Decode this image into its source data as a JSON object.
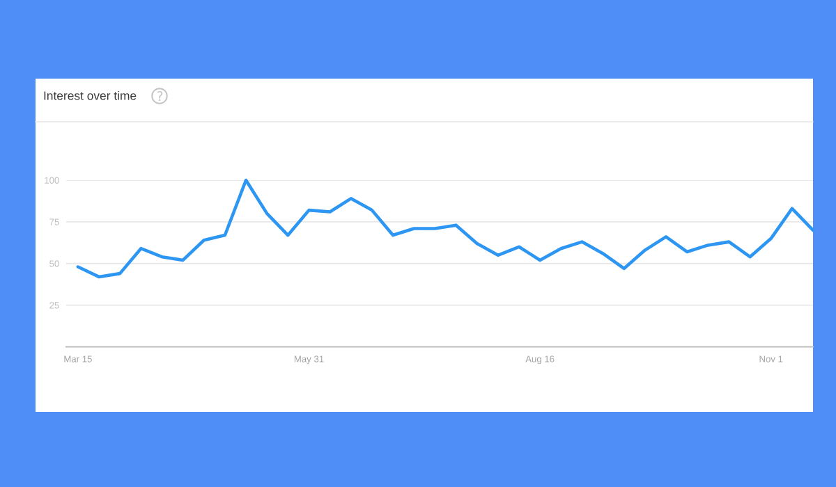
{
  "chart_data": {
    "type": "line",
    "title": "Interest over time",
    "categories": [
      "Mar 15",
      null,
      null,
      null,
      null,
      null,
      null,
      null,
      null,
      null,
      null,
      "May 31",
      null,
      null,
      null,
      null,
      null,
      null,
      null,
      null,
      null,
      null,
      "Aug 16",
      null,
      null,
      null,
      null,
      null,
      null,
      null,
      null,
      null,
      null,
      "Nov 1",
      null,
      null
    ],
    "series": [
      {
        "color": "#2d96f2",
        "values": [
          48,
          42,
          44,
          59,
          54,
          52,
          64,
          67,
          100,
          80,
          67,
          82,
          81,
          89,
          82,
          67,
          71,
          71,
          73,
          62,
          55,
          60,
          52,
          59,
          63,
          56,
          47,
          58,
          66,
          57,
          61,
          63,
          54,
          65,
          83,
          70
        ]
      }
    ],
    "ylim": [
      0,
      100
    ],
    "yticks": [
      25,
      50,
      75,
      100
    ],
    "grid": "y",
    "marker": "none",
    "line_style": "solid"
  }
}
